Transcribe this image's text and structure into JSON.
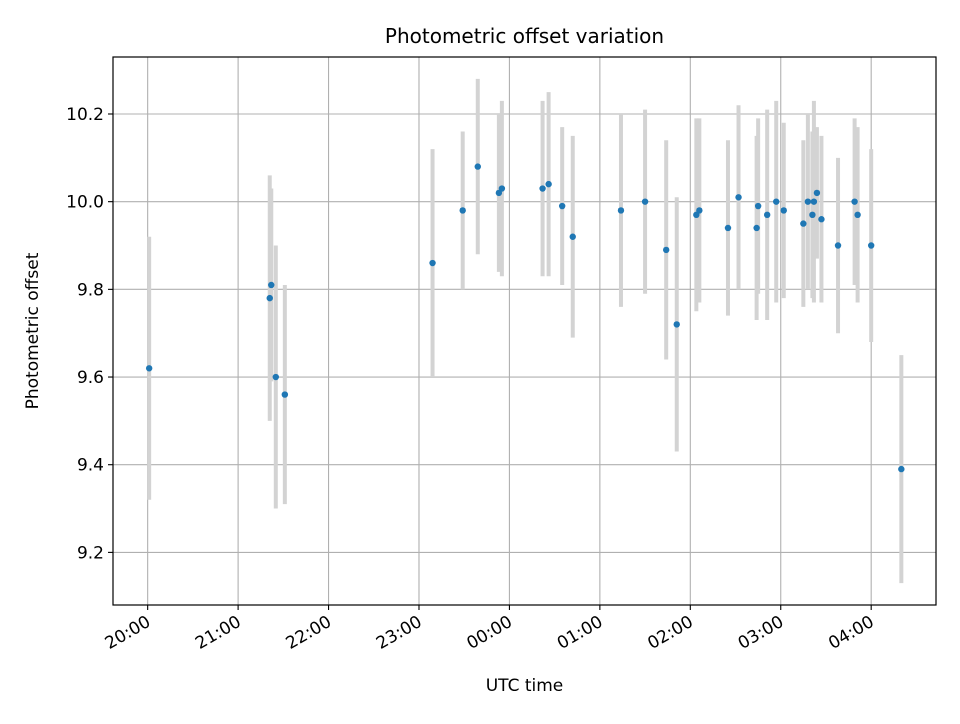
{
  "chart_data": {
    "type": "scatter",
    "title": "Photometric offset variation",
    "xlabel": "UTC time",
    "ylabel": "Photometric offset",
    "grid": true,
    "x_start": "20:00",
    "xlim": [
      "19:37",
      "04:43"
    ],
    "ylim": [
      9.08,
      10.33
    ],
    "xticks": [
      "20:00",
      "21:00",
      "22:00",
      "23:00",
      "00:00",
      "01:00",
      "02:00",
      "03:00",
      "04:00"
    ],
    "yticks": [
      9.2,
      9.4,
      9.6,
      9.8,
      10.0,
      10.2
    ],
    "colors": {
      "points": "#1f77b4",
      "errorbars": "#d3d3d3",
      "grid": "#b0b0b0"
    },
    "points": [
      {
        "time": "20:01",
        "y": 9.62,
        "err": 0.3
      },
      {
        "time": "21:21",
        "y": 9.78,
        "err": 0.28
      },
      {
        "time": "21:22",
        "y": 9.81,
        "err": 0.22
      },
      {
        "time": "21:25",
        "y": 9.6,
        "err": 0.3
      },
      {
        "time": "21:31",
        "y": 9.56,
        "err": 0.25
      },
      {
        "time": "23:09",
        "y": 9.86,
        "err": 0.26
      },
      {
        "time": "23:29",
        "y": 9.98,
        "err": 0.18
      },
      {
        "time": "23:39",
        "y": 10.08,
        "err": 0.2
      },
      {
        "time": "23:53",
        "y": 10.02,
        "err": 0.18
      },
      {
        "time": "23:55",
        "y": 10.03,
        "err": 0.2
      },
      {
        "time": "00:22",
        "y": 10.03,
        "err": 0.2
      },
      {
        "time": "00:26",
        "y": 10.04,
        "err": 0.21
      },
      {
        "time": "00:35",
        "y": 9.99,
        "err": 0.18
      },
      {
        "time": "00:42",
        "y": 9.92,
        "err": 0.23
      },
      {
        "time": "01:14",
        "y": 9.98,
        "err": 0.22
      },
      {
        "time": "01:30",
        "y": 10.0,
        "err": 0.21
      },
      {
        "time": "01:44",
        "y": 9.89,
        "err": 0.25
      },
      {
        "time": "01:51",
        "y": 9.72,
        "err": 0.29
      },
      {
        "time": "02:04",
        "y": 9.97,
        "err": 0.22
      },
      {
        "time": "02:06",
        "y": 9.98,
        "err": 0.21
      },
      {
        "time": "02:25",
        "y": 9.94,
        "err": 0.2
      },
      {
        "time": "02:32",
        "y": 10.01,
        "err": 0.21
      },
      {
        "time": "02:44",
        "y": 9.94,
        "err": 0.21
      },
      {
        "time": "02:45",
        "y": 9.99,
        "err": 0.2
      },
      {
        "time": "02:51",
        "y": 9.97,
        "err": 0.24
      },
      {
        "time": "02:57",
        "y": 10.0,
        "err": 0.23
      },
      {
        "time": "03:02",
        "y": 9.98,
        "err": 0.2
      },
      {
        "time": "03:15",
        "y": 9.95,
        "err": 0.19
      },
      {
        "time": "03:18",
        "y": 10.0,
        "err": 0.2
      },
      {
        "time": "03:21",
        "y": 9.97,
        "err": 0.19
      },
      {
        "time": "03:22",
        "y": 10.0,
        "err": 0.23
      },
      {
        "time": "03:24",
        "y": 10.02,
        "err": 0.15
      },
      {
        "time": "03:27",
        "y": 9.96,
        "err": 0.19
      },
      {
        "time": "03:38",
        "y": 9.9,
        "err": 0.2
      },
      {
        "time": "03:49",
        "y": 10.0,
        "err": 0.19
      },
      {
        "time": "03:51",
        "y": 9.97,
        "err": 0.2
      },
      {
        "time": "04:00",
        "y": 9.9,
        "err": 0.22
      },
      {
        "time": "04:20",
        "y": 9.39,
        "err": 0.26
      }
    ]
  }
}
